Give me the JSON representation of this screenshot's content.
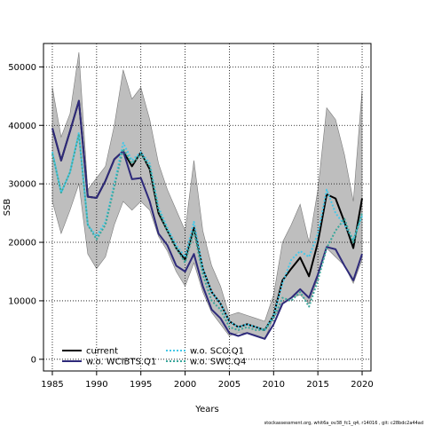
{
  "chart_data": {
    "type": "line",
    "xlabel": "Years",
    "ylabel": "SSB",
    "xlim": [
      1984,
      2021
    ],
    "ylim": [
      -2000,
      54000
    ],
    "xticks": [
      1985,
      1990,
      1995,
      2000,
      2005,
      2010,
      2015,
      2020
    ],
    "yticks": [
      0,
      10000,
      20000,
      30000,
      40000,
      50000
    ],
    "grid": true,
    "legend_position": "bottom-left",
    "footnote": "stockassessment.org,  whit6a_ov38_fc1_q4,  r14016 ,  git: c28bdc2a44ad",
    "x": [
      1985,
      1986,
      1987,
      1988,
      1989,
      1990,
      1991,
      1992,
      1993,
      1994,
      1995,
      1996,
      1997,
      1998,
      1999,
      2000,
      2001,
      2002,
      2003,
      2004,
      2005,
      2006,
      2007,
      2008,
      2009,
      2010,
      2011,
      2012,
      2013,
      2014,
      2015,
      2016,
      2017,
      2018,
      2019,
      2020
    ],
    "band": {
      "upper": [
        46500,
        38000,
        42000,
        52500,
        29000,
        31000,
        33000,
        40000,
        49500,
        44500,
        46500,
        41000,
        33500,
        29000,
        25500,
        22000,
        34000,
        22000,
        16000,
        12500,
        7500,
        8000,
        7500,
        7000,
        6500,
        11000,
        20000,
        23000,
        26500,
        20000,
        29000,
        43000,
        41000,
        35000,
        27000,
        46000
      ],
      "lower": [
        27000,
        21500,
        25500,
        30000,
        18000,
        15500,
        17500,
        23000,
        27000,
        25500,
        27000,
        25500,
        21000,
        18500,
        15000,
        12500,
        16500,
        11500,
        8000,
        6000,
        4000,
        4500,
        4500,
        4000,
        3500,
        7000,
        9500,
        10500,
        11000,
        9500,
        14000,
        19000,
        17500,
        16000,
        13000,
        17000
      ]
    },
    "series": [
      {
        "name": "current",
        "color": "#000000",
        "dash": "solid",
        "values": [
          39500,
          34000,
          39000,
          44200,
          27800,
          27600,
          30500,
          34200,
          35600,
          33000,
          35400,
          32500,
          25000,
          22000,
          19000,
          17000,
          22500,
          15500,
          11500,
          9500,
          6500,
          5500,
          6000,
          5500,
          5000,
          7500,
          13500,
          15500,
          17400,
          14200,
          20000,
          28200,
          27500,
          23500,
          19000,
          27500
        ]
      },
      {
        "name": "w.o. WCIBTS.Q1",
        "color": "#2e2a7a",
        "dash": "solid",
        "values": [
          39500,
          34000,
          39000,
          44200,
          27800,
          27600,
          30500,
          34200,
          35600,
          30800,
          31000,
          27000,
          21500,
          19500,
          16000,
          15000,
          18000,
          12500,
          8500,
          7000,
          4500,
          4000,
          4500,
          4000,
          3500,
          6000,
          9500,
          10500,
          12000,
          10500,
          14500,
          19200,
          18800,
          16000,
          13500,
          18000
        ]
      },
      {
        "name": "w.o. SCO.Q1",
        "color": "#44c8e8",
        "dash": "dotted",
        "values": [
          35500,
          28500,
          32000,
          38800,
          23000,
          21000,
          23500,
          30000,
          37000,
          34000,
          35400,
          33500,
          26000,
          22500,
          19500,
          17500,
          23500,
          15500,
          11500,
          9500,
          6500,
          5500,
          6000,
          5500,
          5000,
          7500,
          13000,
          17000,
          18500,
          17500,
          21500,
          29000,
          25000,
          23000,
          20500,
          24500
        ]
      },
      {
        "name": "w.o. SWC.Q4",
        "color": "#3aa79b",
        "dash": "dotted",
        "values": [
          35200,
          28500,
          32000,
          38500,
          23000,
          20500,
          23000,
          29500,
          36000,
          33500,
          35000,
          33000,
          25500,
          22000,
          19000,
          16500,
          22000,
          14500,
          10000,
          8500,
          5500,
          5000,
          5500,
          5000,
          5000,
          7000,
          10500,
          10000,
          11500,
          9000,
          13500,
          19000,
          22000,
          24000,
          20000,
          25000
        ]
      }
    ]
  }
}
